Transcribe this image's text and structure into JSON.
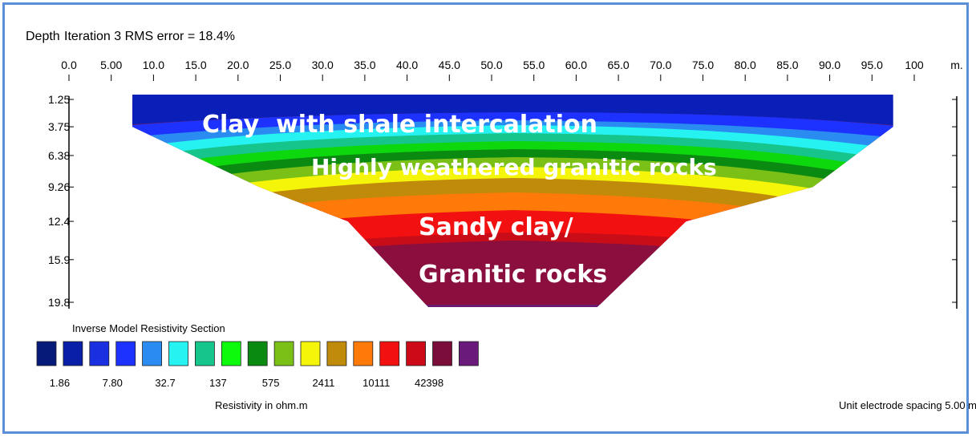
{
  "chart_data": {
    "type": "heatmap",
    "title": "Iteration 3 RMS error = 18.4%",
    "ylabel": "Depth",
    "x_unit": "m.",
    "x_ticks": [
      "0.0",
      "5.00",
      "10.0",
      "15.0",
      "20.0",
      "25.0",
      "30.0",
      "35.0",
      "40.0",
      "45.0",
      "50.0",
      "55.0",
      "60.0",
      "65.0",
      "70.0",
      "75.0",
      "80.0",
      "85.0",
      "90.0",
      "95.0",
      "100"
    ],
    "depth_ticks": [
      "1.25",
      "3.75",
      "6.38",
      "9.26",
      "12.4",
      "15.9",
      "19.8"
    ],
    "depth_values": [
      1.25,
      3.75,
      6.38,
      9.26,
      12.4,
      15.9,
      19.8
    ],
    "section_depth_extent": [
      {
        "depth": 1.25,
        "x_start": 7.5,
        "x_end": 97.5
      },
      {
        "depth": 3.75,
        "x_start": 7.5,
        "x_end": 97.5
      },
      {
        "depth": 9.26,
        "x_start": 22.5,
        "x_end": 88.0
      },
      {
        "depth": 12.4,
        "x_start": 33.0,
        "x_end": 73.0
      },
      {
        "depth": 19.8,
        "x_start": 42.5,
        "x_end": 62.5
      }
    ],
    "layers": [
      {
        "label": "Clay  with shale intercalation",
        "color": "#1a1fd0"
      },
      {
        "label": "Highly weathered granitic rocks",
        "color": "#13b07a"
      },
      {
        "label": "Sandy clay/",
        "color": "#ff7a00"
      },
      {
        "label": "Granitic rocks",
        "color": "#7b0e5a"
      }
    ],
    "legend": {
      "title": "Inverse Model Resistivity Section",
      "colors": [
        "#061a7a",
        "#0a1fa8",
        "#1a2fe0",
        "#1d32ff",
        "#2a8cf0",
        "#26f2f2",
        "#16c58c",
        "#0dfa0d",
        "#0b8a12",
        "#7bc017",
        "#f5f50a",
        "#c08a0a",
        "#ff7a08",
        "#f21010",
        "#cc0a18",
        "#7a0d3a",
        "#6a1a7a"
      ],
      "values": [
        "1.86",
        "7.80",
        "32.7",
        "137",
        "575",
        "2411",
        "10111",
        "42398"
      ],
      "unit_label": "Resistivity in ohm.m"
    },
    "footnote": "Unit electrode spacing 5.00 m."
  }
}
